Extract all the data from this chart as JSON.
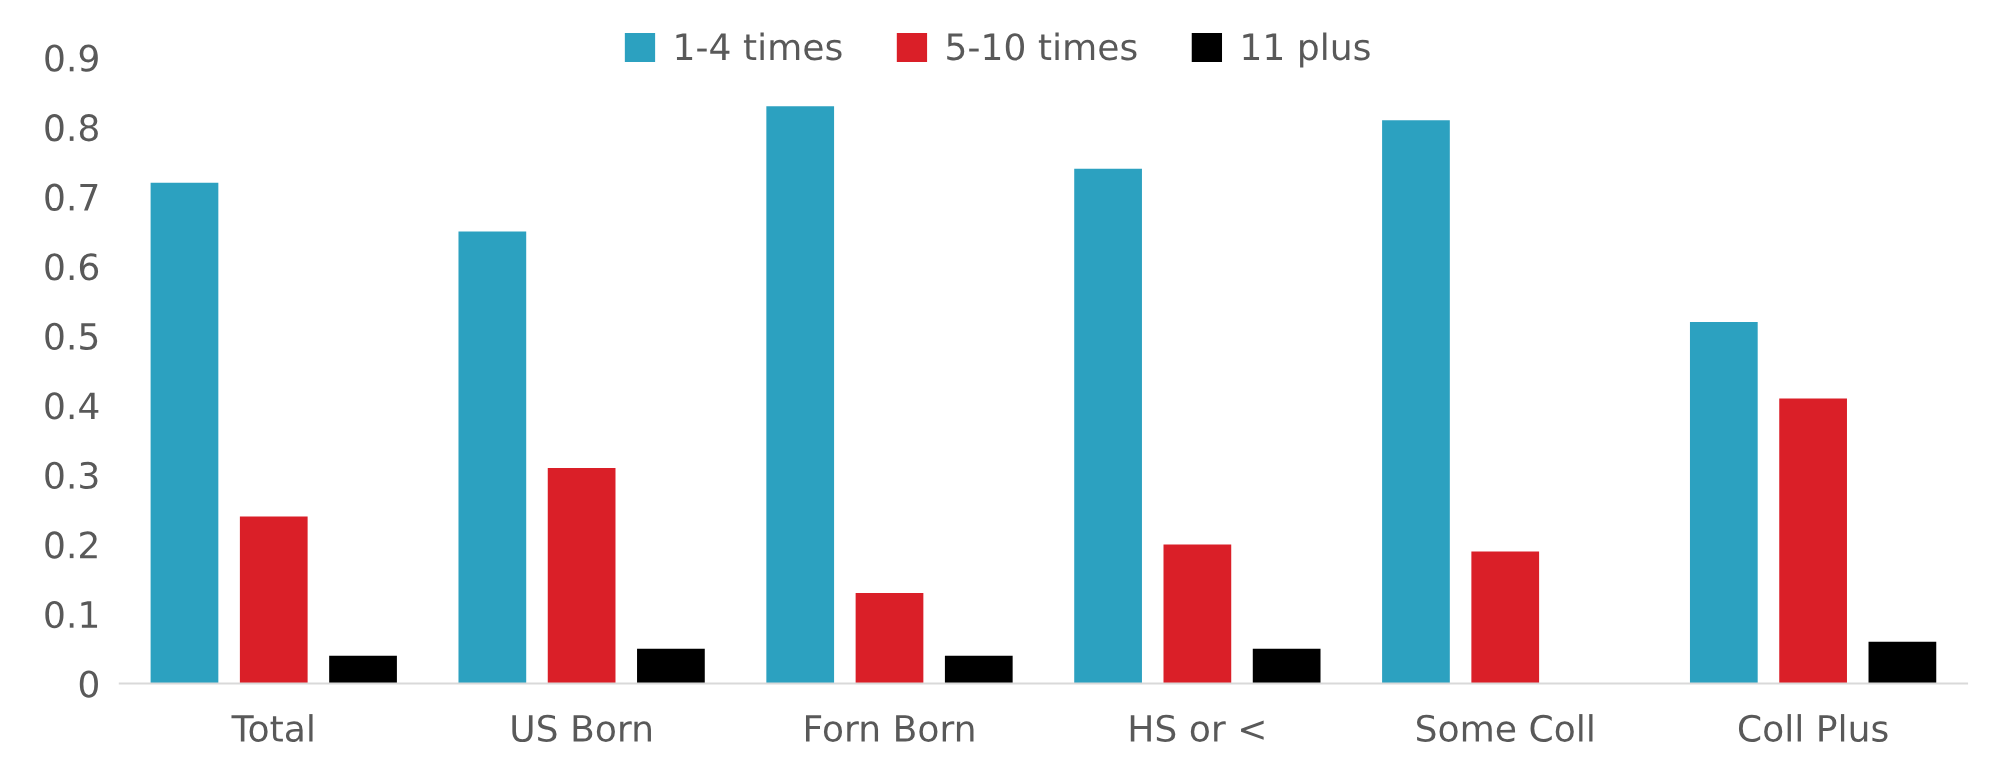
{
  "chart_data": {
    "type": "bar",
    "categories": [
      "Total",
      "US Born",
      "Forn Born",
      "HS or <",
      "Some Coll",
      "Coll Plus"
    ],
    "series": [
      {
        "name": "1-4 times",
        "color": "#2ca1c0",
        "values": [
          0.72,
          0.65,
          0.83,
          0.74,
          0.81,
          0.52
        ]
      },
      {
        "name": "5-10 times",
        "color": "#da1f28",
        "values": [
          0.24,
          0.31,
          0.13,
          0.2,
          0.19,
          0.41
        ]
      },
      {
        "name": "11 plus",
        "color": "#000000",
        "values": [
          0.04,
          0.05,
          0.04,
          0.05,
          null,
          0.06
        ]
      }
    ],
    "ylim": [
      0,
      0.9
    ],
    "yticks": [
      0,
      0.1,
      0.2,
      0.3,
      0.4,
      0.5,
      0.6,
      0.7,
      0.8,
      0.9
    ],
    "grid": false,
    "legend": "top"
  }
}
